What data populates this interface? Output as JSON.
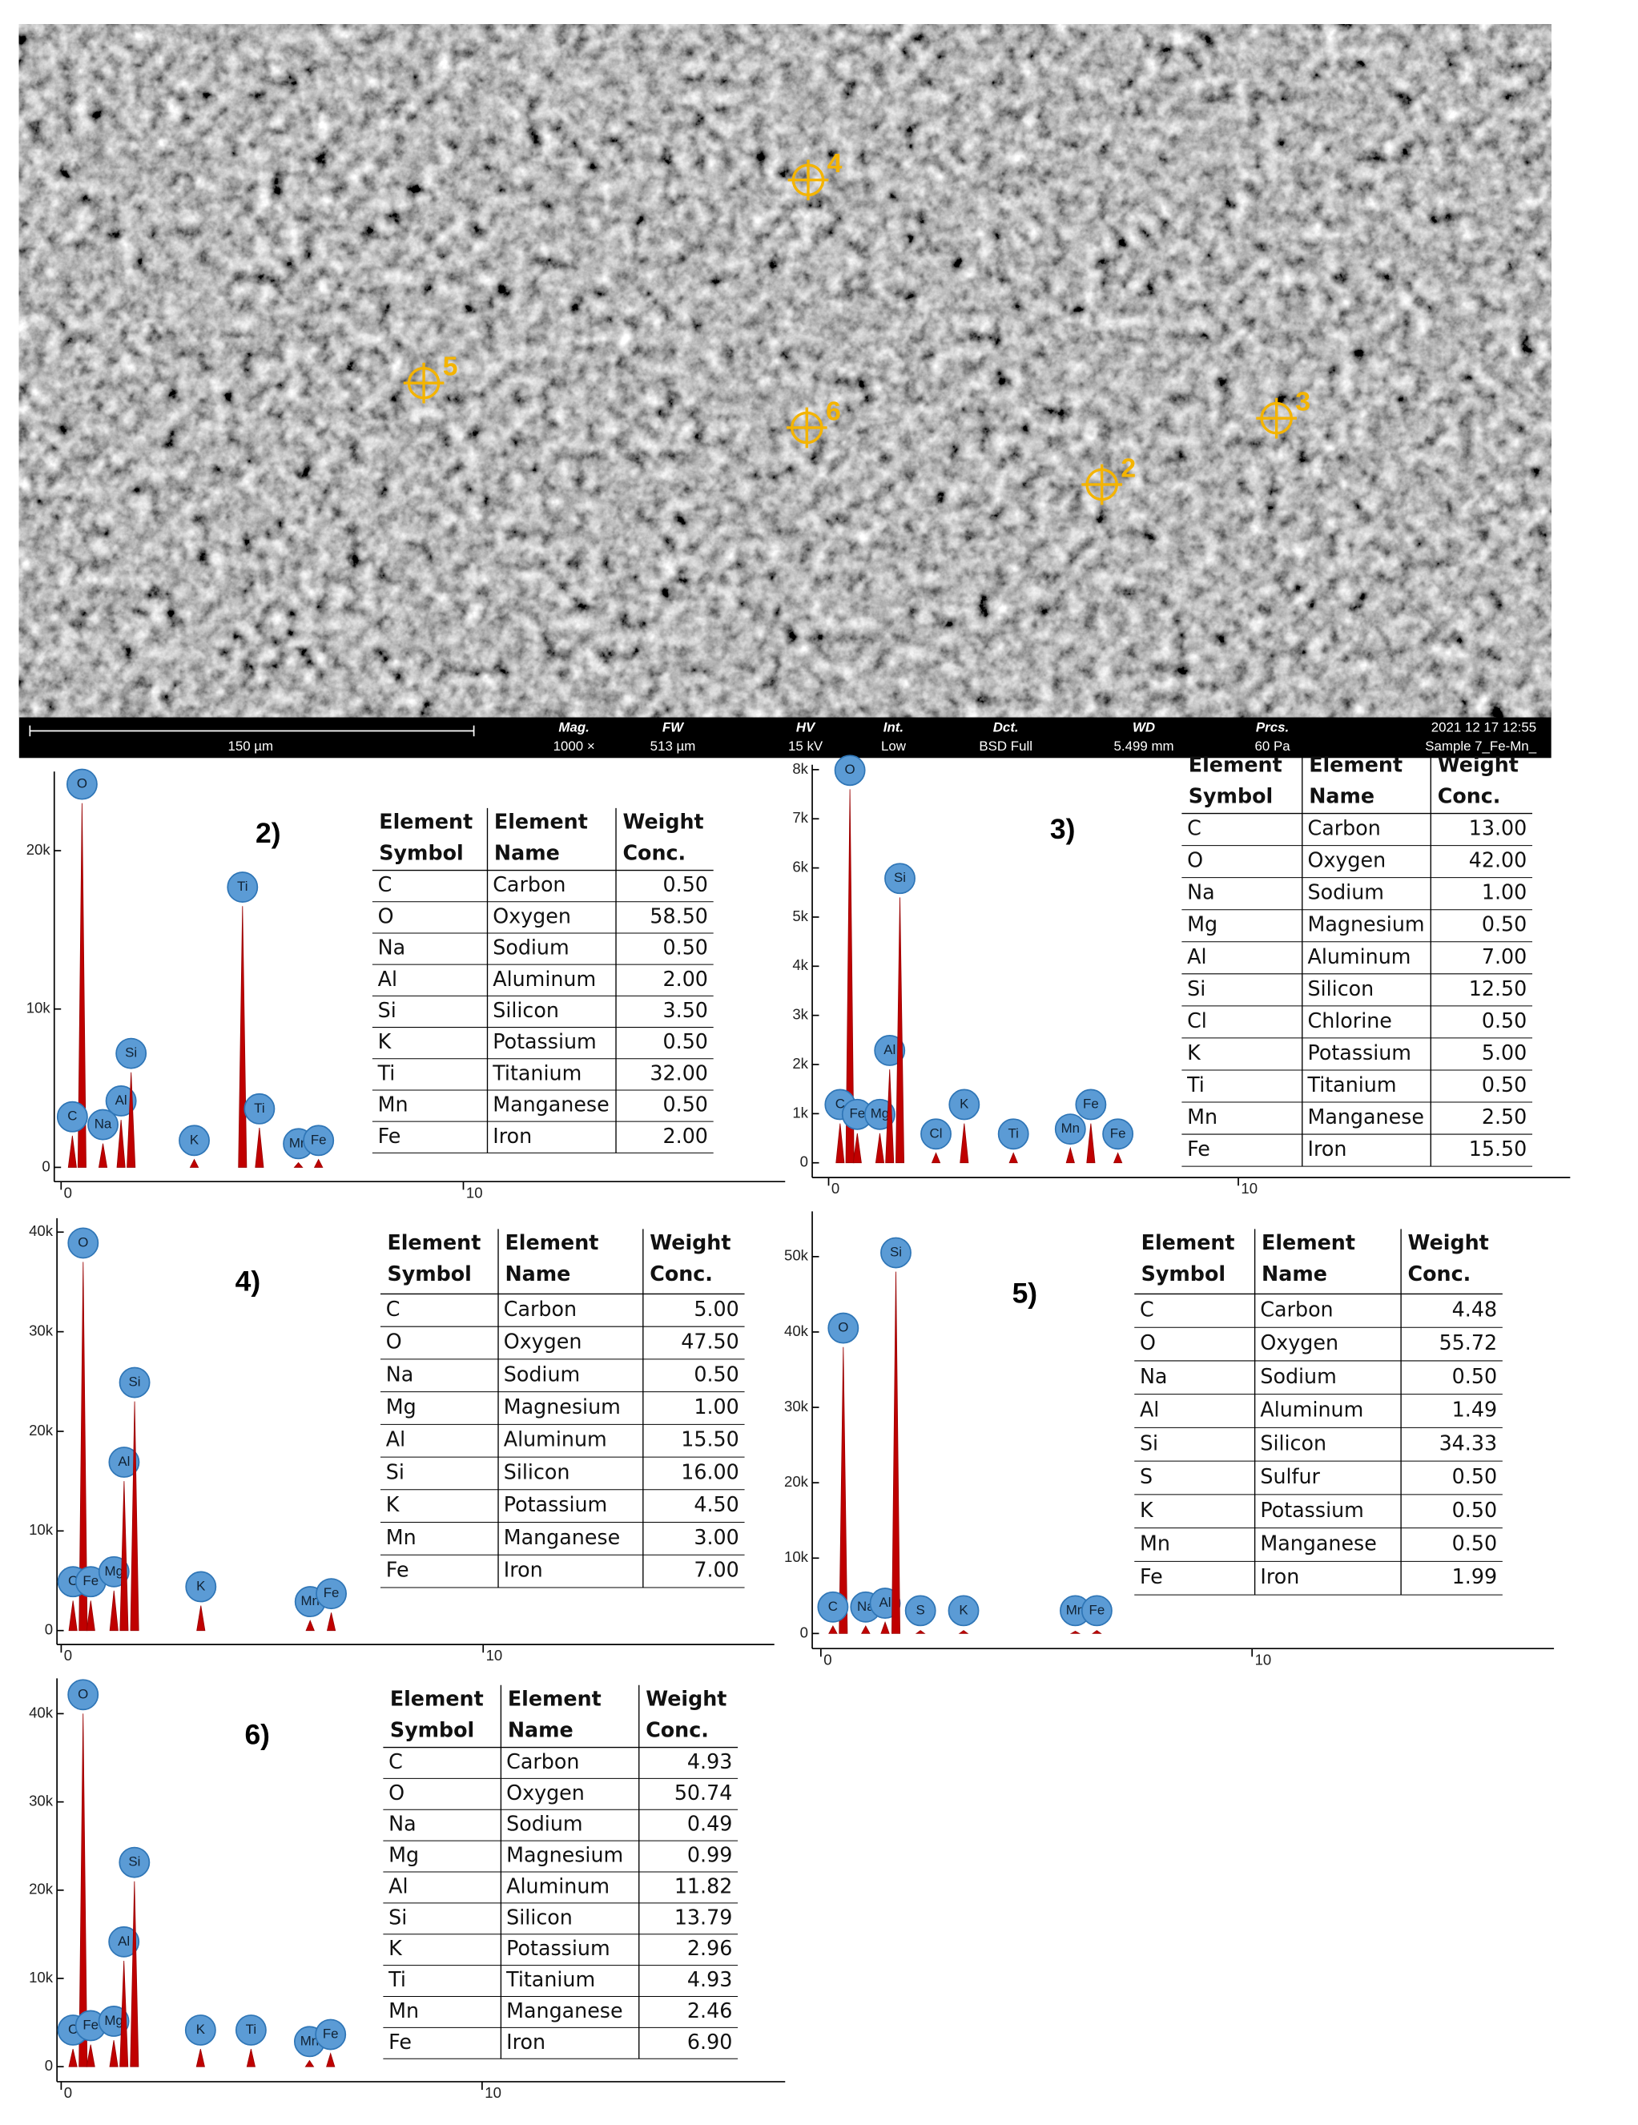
{
  "sem": {
    "points": [
      "4",
      "5",
      "6",
      "3",
      "2"
    ],
    "scale_label": "150 µm",
    "info": [
      {
        "label": "Mag.",
        "value": "1000 ×"
      },
      {
        "label": "FW",
        "value": "513 µm"
      },
      {
        "label": "HV",
        "value": "15 kV"
      },
      {
        "label": "Int.",
        "value": "Low"
      },
      {
        "label": "Dct.",
        "value": "BSD Full"
      },
      {
        "label": "WD",
        "value": "5.499 mm"
      },
      {
        "label": "Prcs.",
        "value": "60 Pa"
      }
    ],
    "datetime": "2021 12 17 12:55",
    "sample": "Sample 7_Fe-Mn_"
  },
  "spectra": [
    {
      "title": "2)",
      "xlim": [
        -0.17,
        18
      ],
      "ylim": [
        -0.9,
        25
      ],
      "xticks": [
        0,
        10
      ],
      "yticks": [
        0,
        {
          "value": 10,
          "label": "10k"
        },
        {
          "value": 20,
          "label": "20k"
        }
      ],
      "peaks": [
        {
          "label": "O",
          "x": 0.52,
          "y": 23
        },
        {
          "label": "C",
          "x": 0.28,
          "y": 2
        },
        {
          "label": "Na",
          "x": 1.04,
          "y": 1.5
        },
        {
          "label": "Al",
          "x": 1.49,
          "y": 3
        },
        {
          "label": "Si",
          "x": 1.74,
          "y": 6
        },
        {
          "label": "K",
          "x": 3.31,
          "y": 0.5
        },
        {
          "label": "Ti",
          "x": 4.51,
          "y": 16.5
        },
        {
          "label": "Ti",
          "x": 4.93,
          "y": 2.5
        },
        {
          "label": "Mn",
          "x": 5.9,
          "y": 0.3
        },
        {
          "label": "Fe",
          "x": 6.4,
          "y": 0.5
        }
      ],
      "table": {
        "headers": [
          [
            "Element",
            "Symbol"
          ],
          [
            "Element",
            "Name"
          ],
          [
            "Weight",
            "Conc."
          ]
        ],
        "rows": [
          [
            "C",
            "Carbon",
            "0.50"
          ],
          [
            "O",
            "Oxygen",
            "58.50"
          ],
          [
            "Na",
            "Sodium",
            "0.50"
          ],
          [
            "Al",
            "Aluminum",
            "2.00"
          ],
          [
            "Si",
            "Silicon",
            "3.50"
          ],
          [
            "K",
            "Potassium",
            "0.50"
          ],
          [
            "Ti",
            "Titanium",
            "32.00"
          ],
          [
            "Mn",
            "Manganese",
            "0.50"
          ],
          [
            "Fe",
            "Iron",
            "2.00"
          ]
        ]
      }
    },
    {
      "title": "3)",
      "xlim": [
        -0.4,
        18.1
      ],
      "ylim": [
        -0.3,
        8.1
      ],
      "xticks": [
        0,
        10
      ],
      "yticks": [
        0,
        {
          "value": 1,
          "label": "1k"
        },
        {
          "value": 2,
          "label": "2k"
        },
        {
          "value": 3,
          "label": "3k"
        },
        {
          "value": 4,
          "label": "4k"
        },
        {
          "value": 5,
          "label": "5k"
        },
        {
          "value": 6,
          "label": "6k"
        },
        {
          "value": 7,
          "label": "7k"
        },
        {
          "value": 8,
          "label": "8k"
        }
      ],
      "peaks": [
        {
          "label": "O",
          "x": 0.52,
          "y": 7.6
        },
        {
          "label": "C",
          "x": 0.28,
          "y": 0.8
        },
        {
          "label": "Fe",
          "x": 0.7,
          "y": 0.6
        },
        {
          "label": "Mg",
          "x": 1.25,
          "y": 0.6
        },
        {
          "label": "Al",
          "x": 1.49,
          "y": 1.9
        },
        {
          "label": "Si",
          "x": 1.74,
          "y": 5.4
        },
        {
          "label": "Cl",
          "x": 2.62,
          "y": 0.2
        },
        {
          "label": "K",
          "x": 3.31,
          "y": 0.8
        },
        {
          "label": "Ti",
          "x": 4.51,
          "y": 0.2
        },
        {
          "label": "Mn",
          "x": 5.9,
          "y": 0.3
        },
        {
          "label": "Fe",
          "x": 6.4,
          "y": 0.8
        },
        {
          "label": "Fe",
          "x": 7.06,
          "y": 0.2
        }
      ],
      "table": {
        "headers": [
          [
            "Element",
            "Symbol"
          ],
          [
            "Element",
            "Name"
          ],
          [
            "Weight",
            "Conc."
          ]
        ],
        "rows": [
          [
            "C",
            "Carbon",
            "13.00"
          ],
          [
            "O",
            "Oxygen",
            "42.00"
          ],
          [
            "Na",
            "Sodium",
            "1.00"
          ],
          [
            "Mg",
            "Magnesium",
            "0.50"
          ],
          [
            "Al",
            "Aluminum",
            "7.00"
          ],
          [
            "Si",
            "Silicon",
            "12.50"
          ],
          [
            "Cl",
            "Chlorine",
            "0.50"
          ],
          [
            "K",
            "Potassium",
            "5.00"
          ],
          [
            "Ti",
            "Titanium",
            "0.50"
          ],
          [
            "Mn",
            "Manganese",
            "2.50"
          ],
          [
            "Fe",
            "Iron",
            "15.50"
          ]
        ]
      }
    },
    {
      "title": "4)",
      "xlim": [
        -0.1,
        16.9
      ],
      "ylim": [
        -1.4,
        41.4
      ],
      "xticks": [
        0,
        10
      ],
      "yticks": [
        0,
        {
          "value": 10,
          "label": "10k"
        },
        {
          "value": 20,
          "label": "20k"
        },
        {
          "value": 30,
          "label": "30k"
        },
        {
          "value": 40,
          "label": "40k"
        }
      ],
      "peaks": [
        {
          "label": "O",
          "x": 0.52,
          "y": 37
        },
        {
          "label": "C",
          "x": 0.28,
          "y": 3
        },
        {
          "label": "Fe",
          "x": 0.7,
          "y": 3
        },
        {
          "label": "Mg",
          "x": 1.25,
          "y": 4
        },
        {
          "label": "Al",
          "x": 1.49,
          "y": 15
        },
        {
          "label": "Si",
          "x": 1.74,
          "y": 23
        },
        {
          "label": "K",
          "x": 3.31,
          "y": 2.5
        },
        {
          "label": "Mn",
          "x": 5.9,
          "y": 1
        },
        {
          "label": "Fe",
          "x": 6.4,
          "y": 1.8
        }
      ],
      "table": {
        "headers": [
          [
            "Element",
            "Symbol"
          ],
          [
            "Element",
            "Name"
          ],
          [
            "Weight",
            "Conc."
          ]
        ],
        "rows": [
          [
            "C",
            "Carbon",
            "5.00"
          ],
          [
            "O",
            "Oxygen",
            "47.50"
          ],
          [
            "Na",
            "Sodium",
            "0.50"
          ],
          [
            "Mg",
            "Magnesium",
            "1.00"
          ],
          [
            "Al",
            "Aluminum",
            "15.50"
          ],
          [
            "Si",
            "Silicon",
            "16.00"
          ],
          [
            "K",
            "Potassium",
            "4.50"
          ],
          [
            "Mn",
            "Manganese",
            "3.00"
          ],
          [
            "Fe",
            "Iron",
            "7.00"
          ]
        ]
      }
    },
    {
      "title": "5)",
      "xlim": [
        -0.2,
        17
      ],
      "ylim": [
        -2,
        56
      ],
      "xticks": [
        0,
        10
      ],
      "yticks": [
        0,
        {
          "value": 10,
          "label": "10k"
        },
        {
          "value": 20,
          "label": "20k"
        },
        {
          "value": 30,
          "label": "30k"
        },
        {
          "value": 40,
          "label": "40k"
        },
        {
          "value": 50,
          "label": "50k"
        }
      ],
      "peaks": [
        {
          "label": "O",
          "x": 0.52,
          "y": 38
        },
        {
          "label": "C",
          "x": 0.28,
          "y": 1
        },
        {
          "label": "Na",
          "x": 1.04,
          "y": 1
        },
        {
          "label": "Al",
          "x": 1.49,
          "y": 1.5
        },
        {
          "label": "Si",
          "x": 1.74,
          "y": 48
        },
        {
          "label": "S",
          "x": 2.31,
          "y": 0.4
        },
        {
          "label": "K",
          "x": 3.31,
          "y": 0.4
        },
        {
          "label": "Mn",
          "x": 5.9,
          "y": 0.3
        },
        {
          "label": "Fe",
          "x": 6.4,
          "y": 0.4
        }
      ],
      "table": {
        "headers": [
          [
            "Element",
            "Symbol"
          ],
          [
            "Element",
            "Name"
          ],
          [
            "Weight",
            "Conc."
          ]
        ],
        "rows": [
          [
            "C",
            "Carbon",
            "4.48"
          ],
          [
            "O",
            "Oxygen",
            "55.72"
          ],
          [
            "Na",
            "Sodium",
            "0.50"
          ],
          [
            "Al",
            "Aluminum",
            "1.49"
          ],
          [
            "Si",
            "Silicon",
            "34.33"
          ],
          [
            "S",
            "Sulfur",
            "0.50"
          ],
          [
            "K",
            "Potassium",
            "0.50"
          ],
          [
            "Mn",
            "Manganese",
            "0.50"
          ],
          [
            "Fe",
            "Iron",
            "1.99"
          ]
        ]
      }
    },
    {
      "title": "6)",
      "xlim": [
        -0.1,
        17.2
      ],
      "ylim": [
        -1.7,
        44
      ],
      "xticks": [
        0,
        10
      ],
      "yticks": [
        0,
        {
          "value": 10,
          "label": "10k"
        },
        {
          "value": 20,
          "label": "20k"
        },
        {
          "value": 30,
          "label": "30k"
        },
        {
          "value": 40,
          "label": "40k"
        }
      ],
      "peaks": [
        {
          "label": "O",
          "x": 0.52,
          "y": 40
        },
        {
          "label": "C",
          "x": 0.28,
          "y": 2
        },
        {
          "label": "Fe",
          "x": 0.7,
          "y": 2.5
        },
        {
          "label": "Mg",
          "x": 1.25,
          "y": 3
        },
        {
          "label": "Al",
          "x": 1.49,
          "y": 12
        },
        {
          "label": "Si",
          "x": 1.74,
          "y": 21
        },
        {
          "label": "K",
          "x": 3.31,
          "y": 2
        },
        {
          "label": "Ti",
          "x": 4.51,
          "y": 2
        },
        {
          "label": "Mn",
          "x": 5.9,
          "y": 0.7
        },
        {
          "label": "Fe",
          "x": 6.4,
          "y": 1.5
        }
      ],
      "table": {
        "headers": [
          [
            "Element",
            "Symbol"
          ],
          [
            "Element",
            "Name"
          ],
          [
            "Weight",
            "Conc."
          ]
        ],
        "rows": [
          [
            "C",
            "Carbon",
            "4.93"
          ],
          [
            "O",
            "Oxygen",
            "50.74"
          ],
          [
            "Na",
            "Sodium",
            "0.49"
          ],
          [
            "Mg",
            "Magnesium",
            "0.99"
          ],
          [
            "Al",
            "Aluminum",
            "11.82"
          ],
          [
            "Si",
            "Silicon",
            "13.79"
          ],
          [
            "K",
            "Potassium",
            "2.96"
          ],
          [
            "Ti",
            "Titanium",
            "4.93"
          ],
          [
            "Mn",
            "Manganese",
            "2.46"
          ],
          [
            "Fe",
            "Iron",
            "6.90"
          ]
        ]
      }
    }
  ]
}
